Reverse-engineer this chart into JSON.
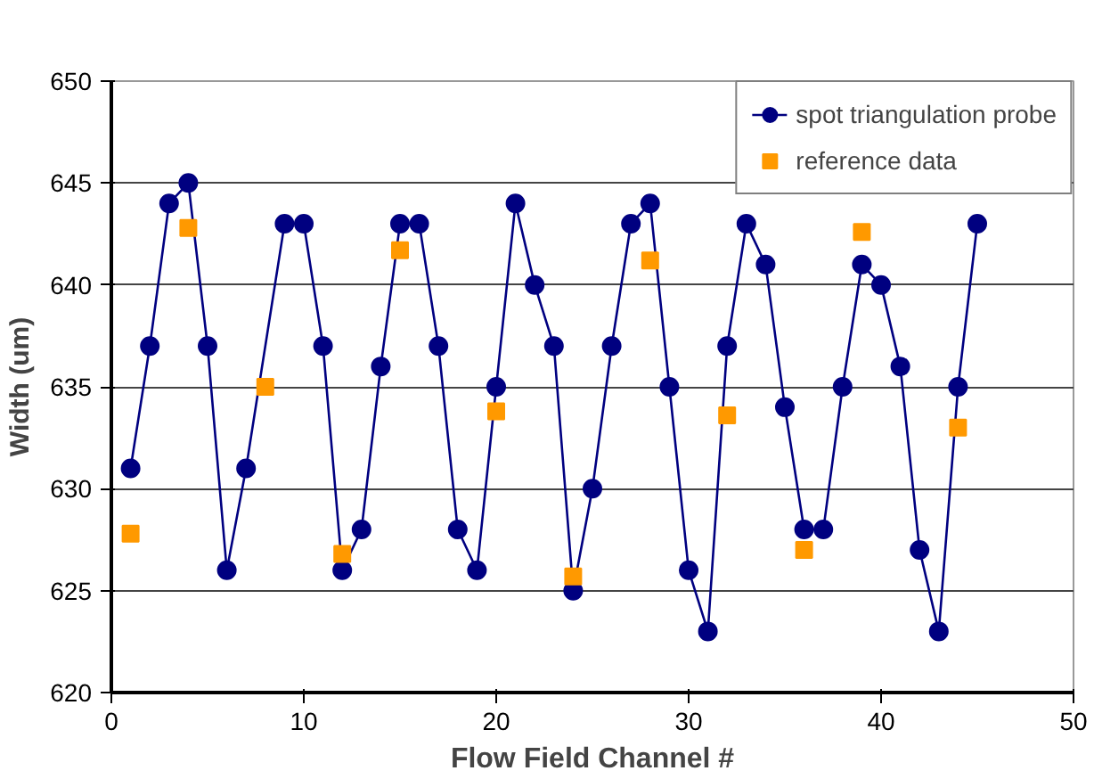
{
  "chart_data": {
    "type": "line",
    "xlabel": "Flow Field Channel #",
    "ylabel": "Width (um)",
    "xlim": [
      0,
      50
    ],
    "ylim": [
      620,
      650
    ],
    "xticks": [
      0,
      10,
      20,
      30,
      40,
      50
    ],
    "yticks": [
      620,
      625,
      630,
      635,
      640,
      645,
      650
    ],
    "grid": "y",
    "legend": "top right",
    "series": [
      {
        "name": "spot triangulation probe",
        "color": "#000080",
        "marker": "circle",
        "line_style": "solid",
        "x": [
          1,
          2,
          3,
          4,
          5,
          6,
          7,
          9,
          10,
          11,
          12,
          13,
          14,
          15,
          16,
          17,
          18,
          19,
          20,
          21,
          22,
          23,
          24,
          25,
          26,
          27,
          28,
          29,
          30,
          31,
          32,
          33,
          34,
          35,
          36,
          37,
          38,
          39,
          40,
          41,
          42,
          43,
          44,
          45
        ],
        "values": [
          631,
          637,
          644,
          645,
          637,
          626,
          631,
          643,
          643,
          637,
          626,
          628,
          636,
          643,
          643,
          637,
          628,
          626,
          635,
          644,
          640,
          637,
          625,
          630,
          637,
          643,
          644,
          635,
          626,
          623,
          637,
          643,
          641,
          634,
          628,
          628,
          635,
          641,
          640,
          636,
          627,
          623,
          635,
          643
        ]
      },
      {
        "name": "reference data",
        "type": "scatter",
        "color": "#ff9900",
        "marker": "square",
        "x": [
          1,
          4,
          8,
          12,
          15,
          20,
          24,
          28,
          32,
          36,
          39,
          44
        ],
        "values": [
          627.8,
          642.8,
          635,
          626.8,
          641.7,
          633.8,
          625.7,
          641.2,
          633.6,
          627.0,
          642.6,
          633.0
        ]
      }
    ]
  }
}
